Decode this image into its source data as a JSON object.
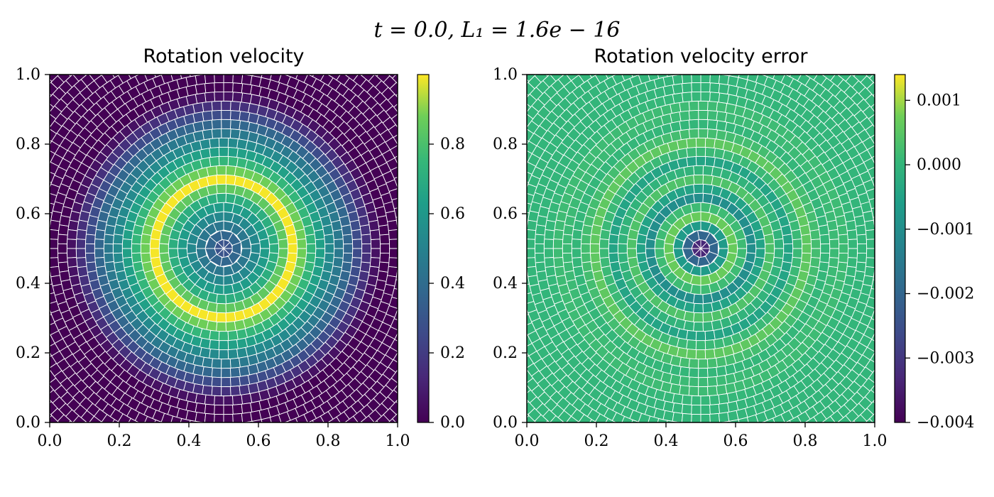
{
  "figure": {
    "suptitle": "t = 0.0,  L₁ = 1.6e − 16"
  },
  "chart_data": [
    {
      "type": "heatmap",
      "title": "Rotation velocity",
      "xlabel": "",
      "ylabel": "",
      "xlim": [
        0.0,
        1.0
      ],
      "ylim": [
        0.0,
        1.0
      ],
      "xticks": [
        "0.0",
        "0.2",
        "0.4",
        "0.6",
        "0.8",
        "1.0"
      ],
      "yticks": [
        "0.0",
        "0.2",
        "0.4",
        "0.6",
        "0.8",
        "1.0"
      ],
      "colormap": "viridis",
      "grid": false,
      "colorbar": {
        "vmin": 0.0,
        "vmax": 1.0,
        "ticks": [
          0.0,
          0.2,
          0.4,
          0.6,
          0.8
        ],
        "tick_labels": [
          "0.0",
          "0.2",
          "0.4",
          "0.6",
          "0.8"
        ]
      },
      "field": {
        "center": [
          0.5,
          0.5
        ],
        "radial_profile": {
          "r": [
            0.0,
            0.05,
            0.1,
            0.15,
            0.2,
            0.25,
            0.3,
            0.35,
            0.4,
            0.45
          ],
          "value": [
            0.25,
            0.4,
            0.55,
            0.72,
            1.0,
            0.75,
            0.55,
            0.4,
            0.2,
            0.0
          ]
        }
      }
    },
    {
      "type": "heatmap",
      "title": "Rotation velocity error",
      "xlabel": "",
      "ylabel": "",
      "xlim": [
        0.0,
        1.0
      ],
      "ylim": [
        0.0,
        1.0
      ],
      "xticks": [
        "0.0",
        "0.2",
        "0.4",
        "0.6",
        "0.8",
        "1.0"
      ],
      "yticks": [
        "0.0",
        "0.2",
        "0.4",
        "0.6",
        "0.8",
        "1.0"
      ],
      "colormap": "viridis",
      "grid": false,
      "colorbar": {
        "vmin": -0.004,
        "vmax": 0.0014,
        "ticks": [
          0.001,
          0.0,
          -0.001,
          -0.002,
          -0.003,
          -0.004
        ],
        "tick_labels": [
          "0.001",
          "0.000",
          "−0.001",
          "−0.002",
          "−0.003",
          "−0.004"
        ]
      },
      "field": {
        "center": [
          0.5,
          0.5
        ],
        "radial_profile": {
          "r": [
            0.0,
            0.05,
            0.1,
            0.15,
            0.2,
            0.25,
            0.3,
            0.35,
            0.4,
            0.45
          ],
          "value": [
            -0.004,
            -0.0015,
            0.001,
            -0.0012,
            0.0004,
            -0.0005,
            0.0006,
            0.0,
            0.0002,
            0.0
          ]
        }
      }
    }
  ]
}
